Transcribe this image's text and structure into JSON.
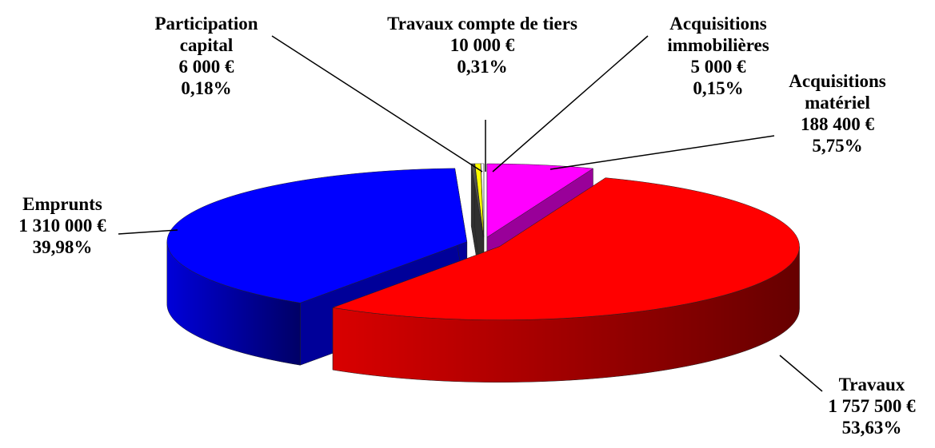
{
  "chart_data": {
    "type": "pie3d",
    "categories": [
      "Participation capital",
      "Travaux compte de tiers",
      "Acquisitions immobilières",
      "Acquisitions matériel",
      "Travaux",
      "Emprunts"
    ],
    "values": [
      6000,
      10000,
      5000,
      188400,
      1757500,
      1310000
    ],
    "value_labels": [
      "6 000 €",
      "10 000 €",
      "5 000 €",
      "188 400 €",
      "1 757 500 €",
      "1 310 000 €"
    ],
    "percents": [
      0.18,
      0.31,
      0.15,
      5.75,
      53.63,
      39.98
    ],
    "percent_labels": [
      "0,18%",
      "0,31%",
      "0,15%",
      "5,75%",
      "53,63%",
      "39,98%"
    ],
    "colors": [
      "#505050",
      "#ffff00",
      "#ffffff",
      "#ff00ff",
      "#ff0000",
      "#0000ff"
    ]
  }
}
